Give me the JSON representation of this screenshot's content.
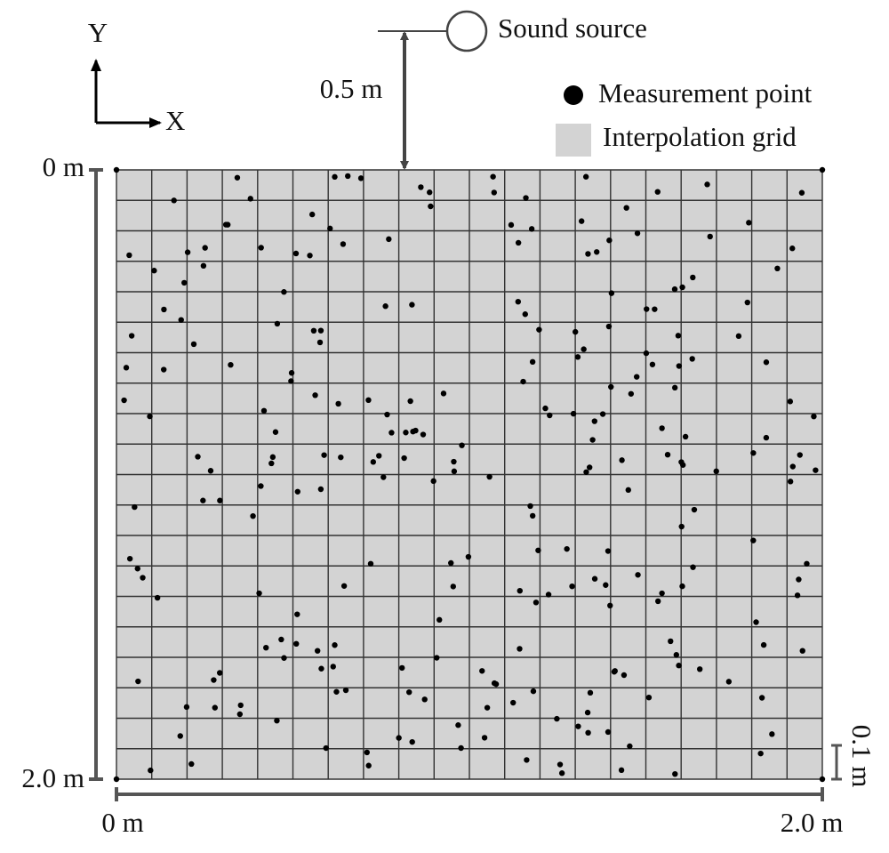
{
  "axes_icon": {
    "y": "Y",
    "x": "X"
  },
  "source": {
    "label": "Sound source",
    "distance": "0.5 m"
  },
  "legend": {
    "items": [
      "Measurement point",
      "Interpolation grid"
    ]
  },
  "y_scale": {
    "start": "0 m",
    "end": "2.0 m"
  },
  "x_scale": {
    "start": "0 m",
    "end": "2.0 m"
  },
  "cell_size": "0.1 m"
}
